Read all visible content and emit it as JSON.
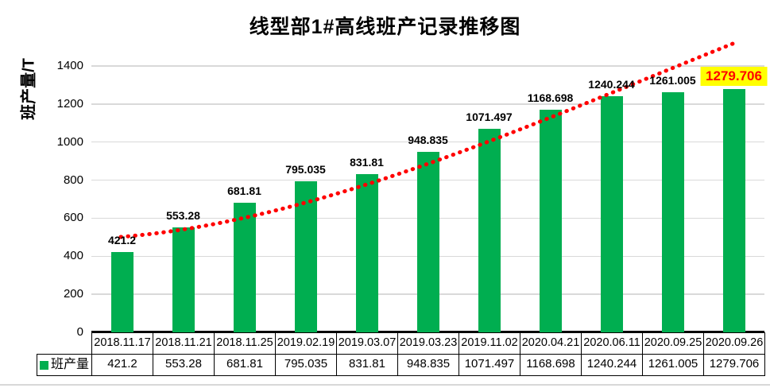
{
  "chart_data": {
    "type": "bar",
    "title": "线型部1#高线班产记录推移图",
    "xlabel": "",
    "ylabel": "班产量/T",
    "categories": [
      "2018.11.17",
      "2018.11.21",
      "2018.11.25",
      "2019.02.19",
      "2019.03.07",
      "2019.03.23",
      "2019.11.02",
      "2020.04.21",
      "2020.06.11",
      "2020.09.25",
      "2020.09.26"
    ],
    "series": [
      {
        "name": "班产量",
        "values": [
          421.2,
          553.28,
          681.81,
          795.035,
          831.81,
          948.835,
          1071.497,
          1168.698,
          1240.244,
          1261.005,
          1279.706
        ]
      }
    ],
    "value_labels": [
      "421.2",
      "553.28",
      "681.81",
      "795.035",
      "831.81",
      "948.835",
      "1071.497",
      "1168.698",
      "1240.244",
      "1261.005",
      "1279.706"
    ],
    "ylim": [
      0,
      1500
    ],
    "yticks": [
      0,
      200,
      400,
      600,
      800,
      1000,
      1200,
      1400
    ],
    "grid": true,
    "legend_position": "bottom-table-left",
    "highlight_index": 10,
    "trendline": {
      "style": "dotted",
      "color": "#FF0000"
    },
    "colors": {
      "bar": "#00AE50",
      "gridline": "#D9D9D9",
      "axis": "#000000",
      "highlight_bg": "#FFFF00",
      "highlight_text": "#FF0000",
      "table_border": "#000000"
    }
  }
}
